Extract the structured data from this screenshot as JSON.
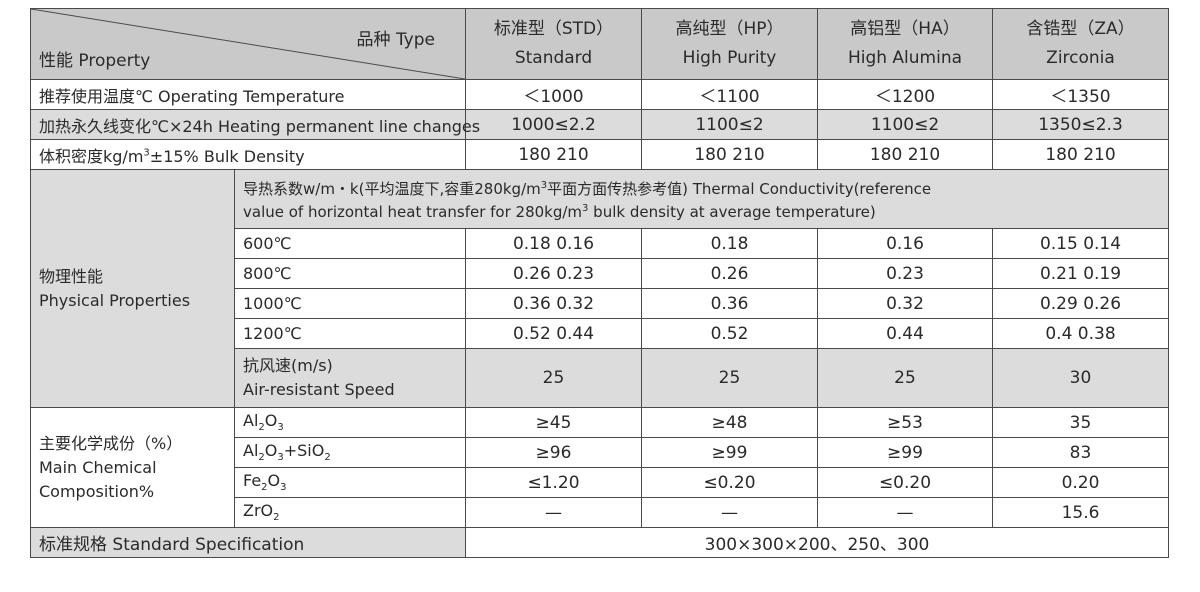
{
  "header": {
    "type_label": "品种 Type",
    "property_label": "性能 Property",
    "columns": [
      {
        "cn": "标准型（STD）",
        "en": "Standard"
      },
      {
        "cn": "高纯型（HP）",
        "en": "High Purity"
      },
      {
        "cn": "高铝型（HA）",
        "en": "High Alumina"
      },
      {
        "cn": "含锆型（ZA）",
        "en": "Zirconia"
      }
    ]
  },
  "basic_rows": [
    {
      "label": "推荐使用温度℃ Operating Temperature",
      "values": [
        "＜1000",
        "＜1100",
        "＜1200",
        "＜1350"
      ]
    },
    {
      "label": "加热永久线变化℃×24h  Heating permanent line changes",
      "values": [
        "1000≤2.2",
        "1100≤2",
        "1100≤2",
        "1350≤2.3"
      ]
    },
    {
      "label_pre": "体积密度kg/m",
      "label_sup": "3",
      "label_post": "±15% Bulk Density",
      "values": [
        "180  210",
        "180  210",
        "180  210",
        "180  210"
      ]
    }
  ],
  "physical": {
    "group_cn": "物理性能",
    "group_en": "Physical Properties",
    "tc_note_line1_pre": "导热系数w/m・k(平均温度下,容重280kg/m",
    "tc_note_line1_sup": "3",
    "tc_note_line1_post": "平面方面传热参考值)   Thermal Conductivity(reference",
    "tc_note_line2_pre": "value of horizontal heat transfer for 280kg/m",
    "tc_note_line2_sup": "3",
    "tc_note_line2_post": " bulk density at average temperature)",
    "rows": [
      {
        "label": "600℃",
        "values": [
          "0.18  0.16",
          "0.18",
          "0.16",
          "0.15  0.14"
        ]
      },
      {
        "label": "800℃",
        "values": [
          "0.26  0.23",
          "0.26",
          "0.23",
          "0.21  0.19"
        ]
      },
      {
        "label": "1000℃",
        "values": [
          "0.36  0.32",
          "0.36",
          "0.32",
          "0.29  0.26"
        ]
      },
      {
        "label": "1200℃",
        "values": [
          "0.52  0.44",
          "0.52",
          "0.44",
          "0.4  0.38"
        ]
      }
    ],
    "air_label_cn": "抗风速(m/s)",
    "air_label_en": "Air-resistant Speed",
    "air_values": [
      "25",
      "25",
      "25",
      "30"
    ]
  },
  "chemical": {
    "group_cn": "主要化学成份（%）",
    "group_en1": "Main Chemical",
    "group_en2": "Composition%",
    "rows": [
      {
        "l1": "Al",
        "s1": "2",
        "l2": "O",
        "s2": "3",
        "l3": "",
        "s3": "",
        "l4": "",
        "s4": "",
        "values": [
          "≥45",
          "≥48",
          "≥53",
          "35"
        ]
      },
      {
        "l1": "Al",
        "s1": "2",
        "l2": "O",
        "s2": "3",
        "l3": "+SiO",
        "s3": "2",
        "l4": "",
        "s4": "",
        "values": [
          "≥96",
          "≥99",
          "≥99",
          "83"
        ]
      },
      {
        "l1": "Fe",
        "s1": "2",
        "l2": "O",
        "s2": "3",
        "l3": "",
        "s3": "",
        "l4": "",
        "s4": "",
        "values": [
          "≤1.20",
          "≤0.20",
          "≤0.20",
          "0.20"
        ]
      },
      {
        "l1": "ZrO",
        "s1": "2",
        "l2": "",
        "s2": "",
        "l3": "",
        "s3": "",
        "l4": "",
        "s4": "",
        "values": [
          "—",
          "—",
          "—",
          "15.6"
        ]
      }
    ]
  },
  "spec": {
    "label": "标准规格  Standard Specification",
    "value": "300×300×200、250、300"
  }
}
